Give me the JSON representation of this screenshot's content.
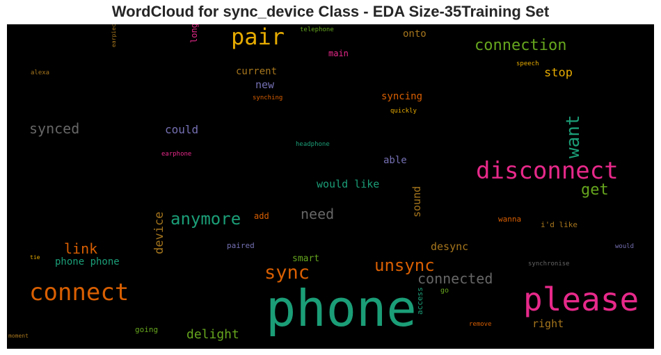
{
  "chart_data": {
    "type": "wordcloud",
    "title": "WordCloud for sync_device Class - EDA Size-35Training Set",
    "palette": [
      "#1b9e77",
      "#d95f02",
      "#7570b3",
      "#e7298a",
      "#66a61e",
      "#e6ab02",
      "#a6761d",
      "#666666"
    ],
    "words": [
      {
        "text": "phone",
        "color": "#1b9e77"
      },
      {
        "text": "please",
        "color": "#e7298a"
      },
      {
        "text": "disconnect",
        "color": "#e7298a"
      },
      {
        "text": "connect",
        "color": "#d95f02"
      },
      {
        "text": "pair",
        "color": "#e6ab02"
      },
      {
        "text": "sync",
        "color": "#d95f02"
      },
      {
        "text": "unsync",
        "color": "#d95f02"
      },
      {
        "text": "want",
        "color": "#1b9e77"
      },
      {
        "text": "anymore",
        "color": "#1b9e77"
      },
      {
        "text": "connection",
        "color": "#66a61e"
      },
      {
        "text": "connected",
        "color": "#666666"
      },
      {
        "text": "get",
        "color": "#66a61e"
      },
      {
        "text": "synced",
        "color": "#666666"
      },
      {
        "text": "need",
        "color": "#666666"
      },
      {
        "text": "link",
        "color": "#d95f02"
      },
      {
        "text": "device",
        "color": "#a6761d"
      },
      {
        "text": "delight",
        "color": "#66a61e"
      },
      {
        "text": "would like",
        "color": "#1b9e77"
      },
      {
        "text": "stop",
        "color": "#e6ab02"
      },
      {
        "text": "right",
        "color": "#a6761d"
      },
      {
        "text": "desync",
        "color": "#a6761d"
      },
      {
        "text": "sound",
        "color": "#a6761d"
      },
      {
        "text": "could",
        "color": "#7570b3"
      },
      {
        "text": "new",
        "color": "#7570b3"
      },
      {
        "text": "current",
        "color": "#a6761d"
      },
      {
        "text": "syncing",
        "color": "#d95f02"
      },
      {
        "text": "phone phone",
        "color": "#1b9e77"
      },
      {
        "text": "smart",
        "color": "#66a61e"
      },
      {
        "text": "able",
        "color": "#7570b3"
      },
      {
        "text": "onto",
        "color": "#a6761d"
      },
      {
        "text": "longer",
        "color": "#e7298a"
      },
      {
        "text": "main",
        "color": "#e7298a"
      },
      {
        "text": "add",
        "color": "#d95f02"
      },
      {
        "text": "wanna",
        "color": "#d95f02"
      },
      {
        "text": "i'd like",
        "color": "#a6761d"
      },
      {
        "text": "paired",
        "color": "#7570b3"
      },
      {
        "text": "access",
        "color": "#1b9e77"
      },
      {
        "text": "going",
        "color": "#66a61e"
      },
      {
        "text": "go",
        "color": "#66a61e"
      },
      {
        "text": "remove",
        "color": "#d95f02"
      },
      {
        "text": "synchronise",
        "color": "#666666"
      },
      {
        "text": "telephone",
        "color": "#66a61e"
      },
      {
        "text": "headphone",
        "color": "#1b9e77"
      },
      {
        "text": "earphone",
        "color": "#e7298a"
      },
      {
        "text": "synching",
        "color": "#d95f02"
      },
      {
        "text": "quickly",
        "color": "#e6ab02"
      },
      {
        "text": "speech",
        "color": "#e6ab02"
      },
      {
        "text": "alexa",
        "color": "#a6761d"
      },
      {
        "text": "earpiece",
        "color": "#a6761d"
      },
      {
        "text": "tie",
        "color": "#e6ab02"
      },
      {
        "text": "moment",
        "color": "#a6761d"
      },
      {
        "text": "would",
        "color": "#7570b3"
      }
    ]
  }
}
